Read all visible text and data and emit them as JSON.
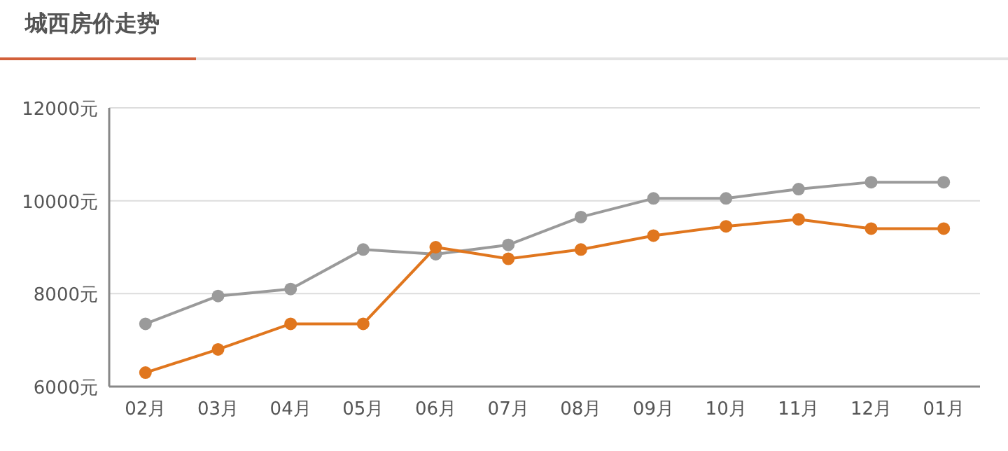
{
  "chart_data": {
    "type": "line",
    "title": "城西房价走势",
    "categories": [
      "02月",
      "03月",
      "04月",
      "05月",
      "06月",
      "07月",
      "08月",
      "09月",
      "10月",
      "11月",
      "12月",
      "01月"
    ],
    "series": [
      {
        "color": "#9a9a9a",
        "values": [
          7350,
          7950,
          8100,
          8950,
          8850,
          9050,
          9650,
          10050,
          10050,
          10250,
          10400,
          10400
        ]
      },
      {
        "color": "#e0761e",
        "values": [
          6300,
          6800,
          7350,
          7350,
          9000,
          8750,
          8950,
          9250,
          9450,
          9600,
          9400,
          9400
        ]
      }
    ],
    "ylim": [
      6000,
      12000
    ],
    "yticks": [
      {
        "value": 6000,
        "label": "6000元"
      },
      {
        "value": 8000,
        "label": "8000元"
      },
      {
        "value": 10000,
        "label": "10000元"
      },
      {
        "value": 12000,
        "label": "12000元"
      }
    ],
    "grid": "y",
    "marker": "circle",
    "line_style": "solid"
  }
}
